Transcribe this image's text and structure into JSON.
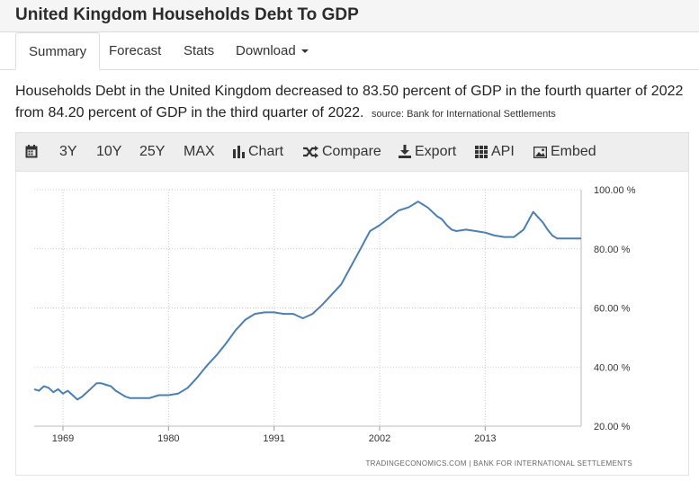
{
  "page": {
    "title": "United Kingdom Households Debt To GDP"
  },
  "tabs": [
    {
      "label": "Summary",
      "active": true
    },
    {
      "label": "Forecast"
    },
    {
      "label": "Stats"
    },
    {
      "label": "Download"
    }
  ],
  "description": {
    "text": "Households Debt in the United Kingdom decreased to 83.50 percent of GDP in the fourth quarter of 2022 from 84.20 percent of GDP in the third quarter of 2022.",
    "source": "source: Bank for International Settlements"
  },
  "toolbar": {
    "calendar_icon": "calendar-icon",
    "range_3y": "3Y",
    "range_10y": "10Y",
    "range_25y": "25Y",
    "range_max": "MAX",
    "chart": "Chart",
    "compare": "Compare",
    "export": "Export",
    "api": "API",
    "embed": "Embed"
  },
  "credit": "TRADINGECONOMICS.COM  |  BANK FOR INTERNATIONAL SETTLEMENTS",
  "colors": {
    "line": "#4a7fb3",
    "grid": "#cccccc"
  },
  "chart_data": {
    "type": "line",
    "title": "",
    "xlabel": "",
    "ylabel": "",
    "x_ticks": [
      "1969",
      "1980",
      "1991",
      "2002",
      "2013"
    ],
    "y_ticks": [
      "20.00 %",
      "40.00 %",
      "60.00 %",
      "80.00 %",
      "100.00 %"
    ],
    "ylim": [
      20,
      100
    ],
    "xlim": [
      1966,
      2023
    ],
    "grid": true,
    "series": [
      {
        "x": [
          1966.0,
          1966.5,
          1967.0,
          1967.5,
          1968.0,
          1968.5,
          1969.0,
          1969.5,
          1970.0,
          1970.5,
          1971.0,
          1971.5,
          1972.0,
          1972.5,
          1973.0,
          1973.5,
          1974.0,
          1974.5,
          1975.0,
          1975.5,
          1976.0,
          1977.0,
          1978.0,
          1979.0,
          1980.0,
          1981.0,
          1982.0,
          1983.0,
          1984.0,
          1985.0,
          1986.0,
          1987.0,
          1988.0,
          1989.0,
          1990.0,
          1991.0,
          1992.0,
          1993.0,
          1994.0,
          1995.0,
          1996.0,
          1997.0,
          1998.0,
          1999.0,
          2000.0,
          2001.0,
          2002.0,
          2003.0,
          2004.0,
          2005.0,
          2006.0,
          2007.0,
          2007.5,
          2008.0,
          2008.5,
          2009.0,
          2009.5,
          2010.0,
          2011.0,
          2012.0,
          2013.0,
          2014.0,
          2015.0,
          2016.0,
          2017.0,
          2018.0,
          2019.0,
          2019.5,
          2020.0,
          2020.5,
          2021.0,
          2021.5,
          2022.0,
          2022.5,
          2023.0
        ],
        "values": [
          32.5,
          32.0,
          33.5,
          33.0,
          31.5,
          32.5,
          31.0,
          32.0,
          30.5,
          29.0,
          30.0,
          31.5,
          33.0,
          34.5,
          34.5,
          34.0,
          33.5,
          32.0,
          31.0,
          30.0,
          29.5,
          29.5,
          29.5,
          30.5,
          30.5,
          31.0,
          33.0,
          36.5,
          40.5,
          44.0,
          48.0,
          52.5,
          56.0,
          58.0,
          58.5,
          58.5,
          58.0,
          58.0,
          56.5,
          58.0,
          61.0,
          64.5,
          68.0,
          74.0,
          80.0,
          86.0,
          88.0,
          90.5,
          93.0,
          94.0,
          96.0,
          94.0,
          92.5,
          91.0,
          90.0,
          88.0,
          86.5,
          86.0,
          86.5,
          86.0,
          85.5,
          84.5,
          84.0,
          84.0,
          86.5,
          92.5,
          89.0,
          86.5,
          84.5,
          83.5,
          83.5,
          83.5,
          83.5,
          83.5,
          83.5
        ],
        "display_values": [
          32.5,
          32.0,
          33.5,
          33.0,
          31.5,
          32.5,
          31.0,
          32.0,
          30.5,
          29.0,
          30.0,
          31.5,
          33.0,
          34.5,
          34.5,
          34.0,
          33.5,
          32.0,
          31.0,
          30.0,
          29.5,
          29.5,
          29.5,
          30.5,
          30.5,
          31.0,
          33.0,
          36.5,
          40.5,
          44.0,
          48.0,
          52.5,
          56.0,
          58.0,
          58.5,
          58.5,
          58.0,
          58.0,
          56.5,
          58.0,
          61.0,
          64.5,
          68.0,
          74.0,
          80.0,
          86.0,
          88.0,
          90.5,
          93.0,
          94.0,
          96.0,
          94.0,
          92.5,
          91.0,
          90.0,
          88.0,
          86.5,
          86.0,
          86.5,
          86.0,
          85.5,
          84.5,
          84.0,
          84.0,
          86.5,
          92.5,
          89.0,
          86.5,
          84.5,
          83.5,
          83.5,
          83.5,
          83.5,
          83.5,
          83.5
        ]
      }
    ]
  }
}
